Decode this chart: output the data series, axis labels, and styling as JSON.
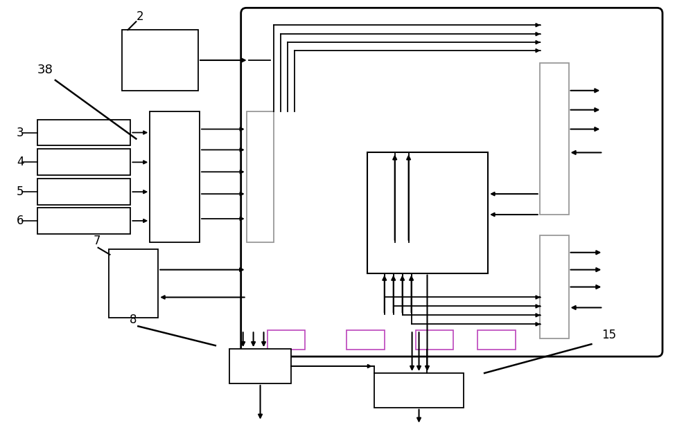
{
  "bg_color": "#ffffff",
  "line_color": "#000000",
  "green_color": "#008800",
  "purple_color": "#bb44bb",
  "gray_color": "#999999",
  "figsize": [
    10.0,
    6.27
  ]
}
